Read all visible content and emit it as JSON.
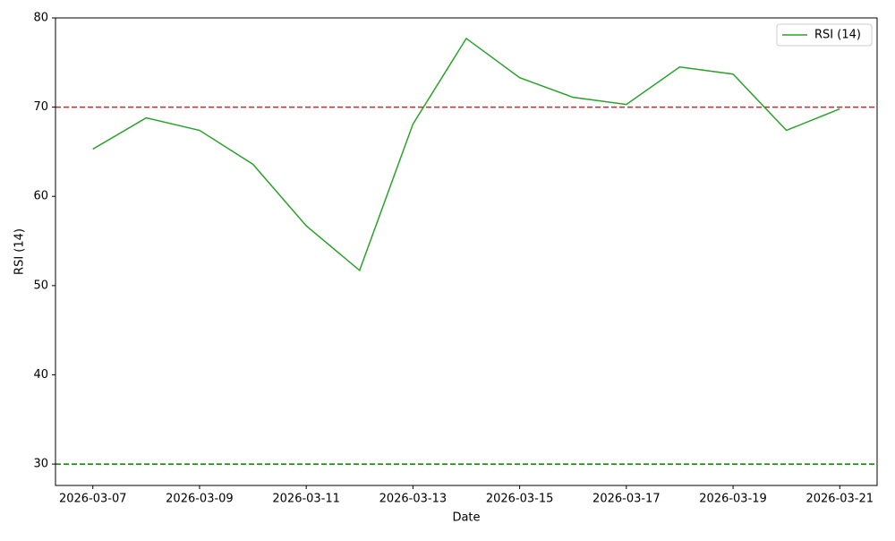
{
  "chart_data": {
    "type": "line",
    "x": [
      "2026-03-07",
      "2026-03-08",
      "2026-03-09",
      "2026-03-10",
      "2026-03-11",
      "2026-03-12",
      "2026-03-13",
      "2026-03-14",
      "2026-03-15",
      "2026-03-16",
      "2026-03-17",
      "2026-03-18",
      "2026-03-19",
      "2026-03-20",
      "2026-03-21"
    ],
    "series": [
      {
        "name": "RSI (14)",
        "color": "#2ca02c",
        "values": [
          65.3,
          68.8,
          67.4,
          63.6,
          56.7,
          51.7,
          68.1,
          77.7,
          73.3,
          71.1,
          70.3,
          74.5,
          73.7,
          67.4,
          69.8
        ]
      }
    ],
    "hlines": [
      {
        "value": 70,
        "color": "#e41a1c",
        "dash": true
      },
      {
        "value": 30,
        "color": "#008000",
        "dash": true
      }
    ],
    "xlabel": "Date",
    "ylabel": "RSI (14)",
    "xlim": [
      "2026-03-06T07:12",
      "2026-03-21T16:48"
    ],
    "xticks": [
      "2026-03-07",
      "2026-03-09",
      "2026-03-11",
      "2026-03-13",
      "2026-03-15",
      "2026-03-17",
      "2026-03-19",
      "2026-03-21"
    ],
    "ylim": [
      27.6,
      80
    ],
    "yticks": [
      30,
      40,
      50,
      60,
      70,
      80
    ],
    "legend": "upper-right"
  }
}
